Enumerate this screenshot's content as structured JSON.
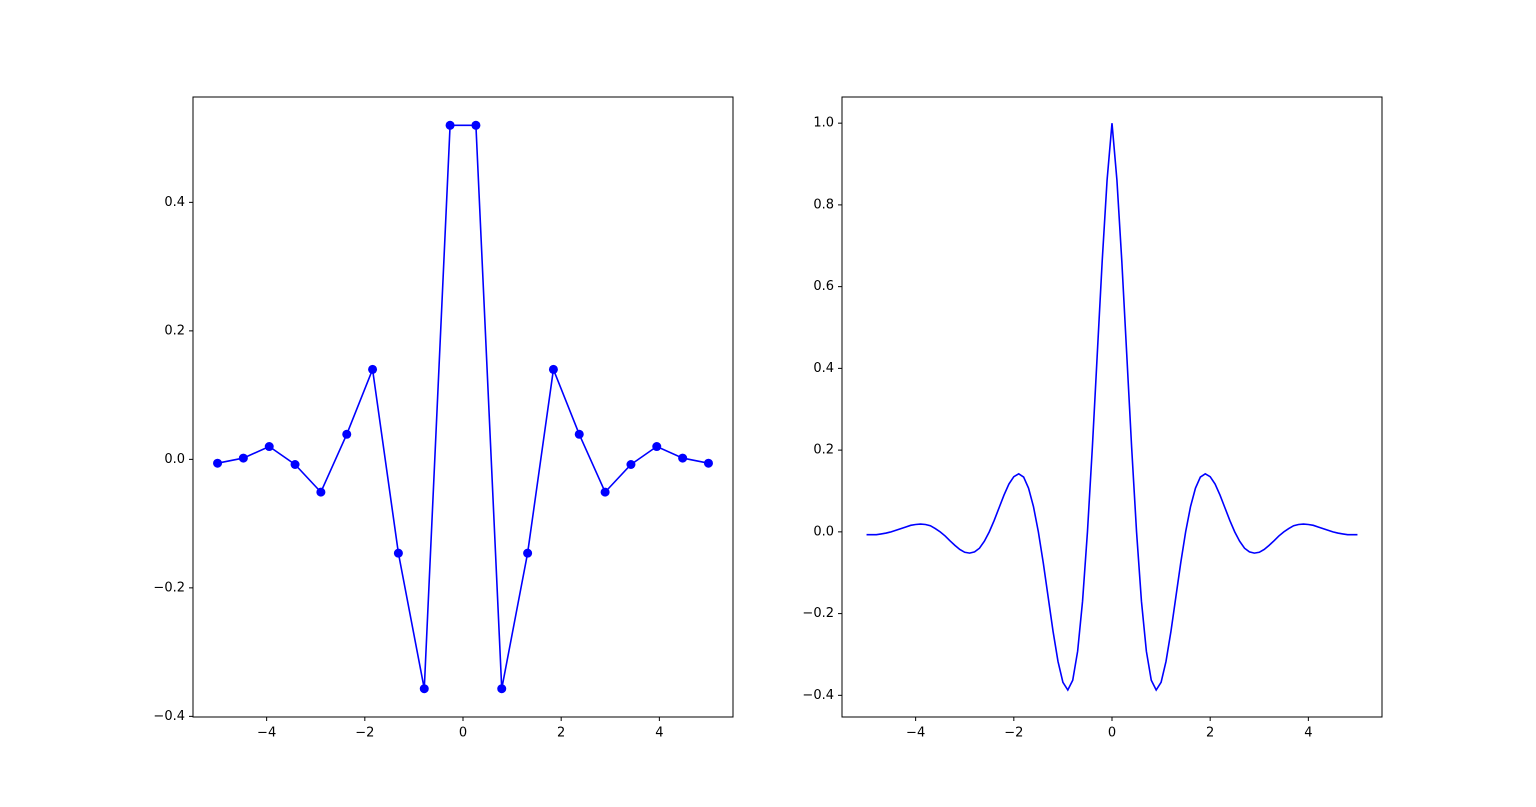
{
  "chart_data": [
    {
      "type": "line",
      "marker": "o",
      "x": [
        -5,
        -4.474,
        -3.947,
        -3.421,
        -2.895,
        -2.368,
        -1.842,
        -1.316,
        -0.789,
        -0.263,
        0.263,
        0.789,
        1.316,
        1.842,
        2.368,
        2.895,
        3.421,
        3.947,
        4.474,
        5
      ],
      "series": [
        {
          "color": "#0000ff",
          "values": [
            -0.006,
            0.002,
            0.02,
            -0.008,
            -0.051,
            0.039,
            0.14,
            -0.146,
            -0.357,
            0.52,
            0.52,
            -0.357,
            -0.146,
            0.14,
            0.039,
            -0.051,
            -0.008,
            0.02,
            0.002,
            -0.006
          ]
        }
      ],
      "xlim": [
        -5.5,
        5.5
      ],
      "ylim": [
        -0.401,
        0.564
      ],
      "xticks": [
        {
          "value": -4,
          "label": "−4"
        },
        {
          "value": -2,
          "label": "−2"
        },
        0,
        2,
        4
      ],
      "yticks": [
        {
          "value": -0.4,
          "label": "−0.4"
        },
        {
          "value": -0.2,
          "label": "−0.2"
        },
        {
          "value": 0,
          "label": "0.0"
        },
        0.2,
        0.4
      ]
    },
    {
      "type": "line",
      "x": [
        -5,
        -4.9,
        -4.8,
        -4.7,
        -4.6,
        -4.5,
        -4.4,
        -4.3,
        -4.2,
        -4.1,
        -4,
        -3.9,
        -3.8,
        -3.7,
        -3.6,
        -3.5,
        -3.4,
        -3.3,
        -3.2,
        -3.1,
        -3,
        -2.9,
        -2.8,
        -2.7,
        -2.6,
        -2.5,
        -2.4,
        -2.3,
        -2.2,
        -2.1,
        -2,
        -1.9,
        -1.8,
        -1.7,
        -1.6,
        -1.5,
        -1.4,
        -1.3,
        -1.2,
        -1.1,
        -1,
        -0.9,
        -0.8,
        -0.7,
        -0.6,
        -0.5,
        -0.4,
        -0.3,
        -0.2,
        -0.1,
        0,
        0.1,
        0.2,
        0.3,
        0.4,
        0.5,
        0.6,
        0.7,
        0.8,
        0.9,
        1,
        1.1,
        1.2,
        1.3,
        1.4,
        1.5,
        1.6,
        1.7,
        1.8,
        1.9,
        2,
        2.1,
        2.2,
        2.3,
        2.4,
        2.5,
        2.6,
        2.7,
        2.8,
        2.9,
        3,
        3.1,
        3.2,
        3.3,
        3.4,
        3.5,
        3.6,
        3.7,
        3.8,
        3.9,
        4,
        4.1,
        4.2,
        4.3,
        4.4,
        4.5,
        4.6,
        4.7,
        4.8,
        4.9,
        5
      ],
      "series": [
        {
          "color": "#0000ff",
          "values": [
            -0.007,
            -0.007,
            -0.007,
            -0.005,
            -0.003,
            0,
            0.004,
            0.008,
            0.012,
            0.016,
            0.018,
            0.019,
            0.018,
            0.015,
            0.008,
            0,
            -0.01,
            -0.022,
            -0.033,
            -0.043,
            -0.05,
            -0.052,
            -0.049,
            -0.04,
            -0.023,
            0,
            0.028,
            0.059,
            0.09,
            0.117,
            0.135,
            0.142,
            0.134,
            0.107,
            0.062,
            0,
            -0.076,
            -0.16,
            -0.244,
            -0.317,
            -0.368,
            -0.387,
            -0.363,
            -0.292,
            -0.17,
            0,
            0.207,
            0.435,
            0.662,
            0.861,
            1,
            0.861,
            0.662,
            0.435,
            0.207,
            0,
            -0.17,
            -0.292,
            -0.363,
            -0.387,
            -0.368,
            -0.317,
            -0.244,
            -0.16,
            -0.076,
            0,
            0.062,
            0.107,
            0.134,
            0.142,
            0.135,
            0.117,
            0.09,
            0.059,
            0.028,
            0,
            -0.023,
            -0.04,
            -0.049,
            -0.052,
            -0.05,
            -0.043,
            -0.033,
            -0.022,
            -0.01,
            0,
            0.008,
            0.015,
            0.018,
            0.019,
            0.018,
            0.016,
            0.012,
            0.008,
            0.004,
            0,
            -0.003,
            -0.005,
            -0.007,
            -0.007,
            -0.007
          ]
        }
      ],
      "xlim": [
        -5.5,
        5.5
      ],
      "ylim": [
        -0.453,
        1.064
      ],
      "xticks": [
        {
          "value": -4,
          "label": "−4"
        },
        {
          "value": -2,
          "label": "−2"
        },
        0,
        2,
        4
      ],
      "yticks": [
        {
          "value": -0.4,
          "label": "−0.4"
        },
        {
          "value": -0.2,
          "label": "−0.2"
        },
        {
          "value": 0,
          "label": "0.0"
        },
        0.2,
        0.4,
        0.6,
        0.8,
        {
          "value": 1,
          "label": "1.0"
        }
      ]
    }
  ]
}
